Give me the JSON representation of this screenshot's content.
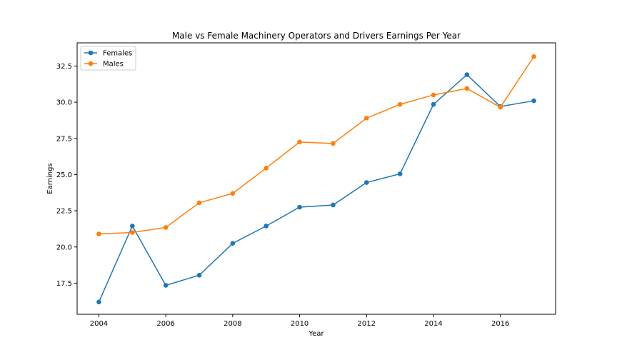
{
  "chart_data": {
    "type": "line",
    "title": "Male vs Female Machinery Operators and Drivers Earnings Per Year",
    "xlabel": "Year",
    "ylabel": "Earnings",
    "x": [
      2004,
      2005,
      2006,
      2007,
      2008,
      2009,
      2010,
      2011,
      2012,
      2013,
      2014,
      2015,
      2016,
      2017
    ],
    "xticks": [
      2004,
      2006,
      2008,
      2010,
      2012,
      2014,
      2016
    ],
    "xtick_labels": [
      "2004",
      "2006",
      "2008",
      "2010",
      "2012",
      "2014",
      "2016"
    ],
    "yticks": [
      17.5,
      20.0,
      22.5,
      25.0,
      27.5,
      30.0,
      32.5
    ],
    "ytick_labels": [
      "17.5",
      "20.0",
      "22.5",
      "25.0",
      "27.5",
      "30.0",
      "32.5"
    ],
    "xlim": [
      2003.35,
      2017.65
    ],
    "ylim": [
      15.35,
      34.1
    ],
    "grid": false,
    "legend_position": "top-left",
    "series": [
      {
        "name": "Females",
        "color": "#1f77b4",
        "marker": "circle",
        "values": [
          16.2,
          21.45,
          17.35,
          18.05,
          20.25,
          21.45,
          22.75,
          22.9,
          24.45,
          25.05,
          29.85,
          31.9,
          29.7,
          30.1
        ]
      },
      {
        "name": "Males",
        "color": "#ff7f0e",
        "marker": "circle",
        "values": [
          20.9,
          21.0,
          21.35,
          23.05,
          23.7,
          25.45,
          27.25,
          27.15,
          28.9,
          29.85,
          30.5,
          30.95,
          29.65,
          33.15
        ]
      }
    ]
  }
}
